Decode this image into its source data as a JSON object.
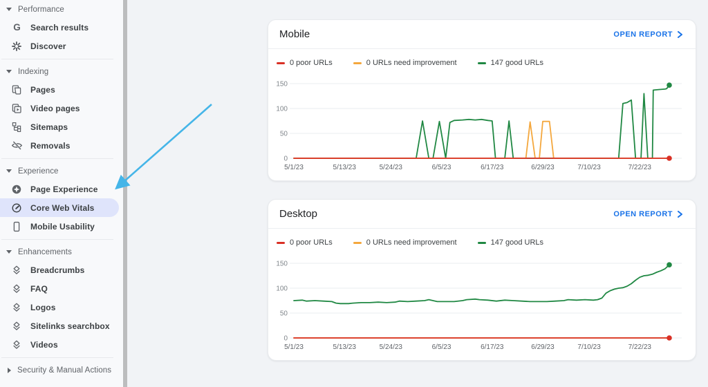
{
  "sidebar": {
    "selected_item": "Core Web Vitals",
    "sections": [
      {
        "label": "Performance",
        "state": "expanded",
        "items": [
          {
            "label": "Search results",
            "icon": "google-g-icon",
            "selected": false
          },
          {
            "label": "Discover",
            "icon": "discover-burst-icon",
            "selected": false
          }
        ]
      },
      {
        "label": "Indexing",
        "state": "expanded",
        "items": [
          {
            "label": "Pages",
            "icon": "pages-icon",
            "selected": false
          },
          {
            "label": "Video pages",
            "icon": "video-pages-icon",
            "selected": false
          },
          {
            "label": "Sitemaps",
            "icon": "sitemaps-icon",
            "selected": false
          },
          {
            "label": "Removals",
            "icon": "removals-eye-off-icon",
            "selected": false
          }
        ]
      },
      {
        "label": "Experience",
        "state": "expanded",
        "items": [
          {
            "label": "Page Experience",
            "icon": "page-experience-icon",
            "selected": false
          },
          {
            "label": "Core Web Vitals",
            "icon": "core-web-vitals-gauge-icon",
            "selected": true
          },
          {
            "label": "Mobile Usability",
            "icon": "mobile-usability-phone-icon",
            "selected": false
          }
        ]
      },
      {
        "label": "Enhancements",
        "state": "expanded",
        "items": [
          {
            "label": "Breadcrumbs",
            "icon": "enhancement-diamond-icon",
            "selected": false
          },
          {
            "label": "FAQ",
            "icon": "enhancement-diamond-icon",
            "selected": false
          },
          {
            "label": "Logos",
            "icon": "enhancement-diamond-icon",
            "selected": false
          },
          {
            "label": "Sitelinks searchbox",
            "icon": "enhancement-diamond-icon",
            "selected": false
          },
          {
            "label": "Videos",
            "icon": "enhancement-diamond-icon",
            "selected": false
          }
        ]
      },
      {
        "label": "Security & Manual Actions",
        "state": "collapsed",
        "items": []
      }
    ]
  },
  "labels": {
    "open_report": "OPEN REPORT"
  },
  "colors": {
    "open_report_link": "#1a73e8",
    "selected_pill": "#dfe4fb",
    "annotation_arrow": "#45b5e8",
    "scrollbar": "#bcbdbe",
    "gridline": "#e9ecef",
    "axis_label": "#80868b",
    "date_label": "#5f6368"
  },
  "chart_data": [
    {
      "id": "mobile",
      "type": "line",
      "title": "Mobile",
      "legend_position": "top",
      "grid": true,
      "x_unit": "days since 5/1/23",
      "x_range": [
        0,
        89
      ],
      "ylim": [
        0,
        160
      ],
      "y_ticks": [
        0,
        50,
        100,
        150
      ],
      "x_ticks": [
        {
          "day": 0,
          "label": "5/1/23"
        },
        {
          "day": 12,
          "label": "5/13/23"
        },
        {
          "day": 23,
          "label": "5/24/23"
        },
        {
          "day": 35,
          "label": "6/5/23"
        },
        {
          "day": 47,
          "label": "6/17/23"
        },
        {
          "day": 59,
          "label": "6/29/23"
        },
        {
          "day": 70,
          "label": "7/10/23"
        },
        {
          "day": 82,
          "label": "7/22/23"
        }
      ],
      "series": [
        {
          "name": "0 poor URLs",
          "color": "#d93025",
          "end_dot": true,
          "points": [
            [
              0,
              0
            ],
            [
              89,
              0
            ]
          ]
        },
        {
          "name": "0 URLs need improvement",
          "color": "#f4a73d",
          "end_dot": false,
          "points": [
            [
              0,
              0
            ],
            [
              55,
              0
            ],
            [
              56,
              73
            ],
            [
              57.2,
              0
            ],
            [
              58.2,
              0
            ],
            [
              59,
              74
            ],
            [
              60.6,
              74
            ],
            [
              61.6,
              0
            ],
            [
              89,
              0
            ]
          ]
        },
        {
          "name": "147 good URLs",
          "color": "#208843",
          "end_dot": true,
          "points": [
            [
              0,
              0
            ],
            [
              29,
              0
            ],
            [
              30.5,
              75
            ],
            [
              32,
              0
            ],
            [
              33,
              0
            ],
            [
              34.5,
              74
            ],
            [
              36,
              0
            ],
            [
              37,
              72
            ],
            [
              38,
              76
            ],
            [
              40,
              77
            ],
            [
              41.5,
              78
            ],
            [
              43,
              77
            ],
            [
              44.5,
              78
            ],
            [
              46,
              76
            ],
            [
              47,
              75
            ],
            [
              47.8,
              0
            ],
            [
              50,
              0
            ],
            [
              51,
              75
            ],
            [
              52,
              0
            ],
            [
              77,
              0
            ],
            [
              78,
              110
            ],
            [
              79,
              112
            ],
            [
              80,
              117
            ],
            [
              81,
              0
            ],
            [
              82.3,
              0
            ],
            [
              83,
              130
            ],
            [
              83.9,
              0
            ],
            [
              85,
              0
            ],
            [
              85.2,
              137
            ],
            [
              86.5,
              138
            ],
            [
              88,
              139
            ],
            [
              88.4,
              140
            ],
            [
              89,
              147
            ]
          ]
        }
      ]
    },
    {
      "id": "desktop",
      "type": "line",
      "title": "Desktop",
      "legend_position": "top",
      "grid": true,
      "x_unit": "days since 5/1/23",
      "x_range": [
        0,
        89
      ],
      "ylim": [
        0,
        160
      ],
      "y_ticks": [
        0,
        50,
        100,
        150
      ],
      "x_ticks": [
        {
          "day": 0,
          "label": "5/1/23"
        },
        {
          "day": 12,
          "label": "5/13/23"
        },
        {
          "day": 23,
          "label": "5/24/23"
        },
        {
          "day": 35,
          "label": "6/5/23"
        },
        {
          "day": 47,
          "label": "6/17/23"
        },
        {
          "day": 59,
          "label": "6/29/23"
        },
        {
          "day": 70,
          "label": "7/10/23"
        },
        {
          "day": 82,
          "label": "7/22/23"
        }
      ],
      "series": [
        {
          "name": "0 poor URLs",
          "color": "#d93025",
          "end_dot": true,
          "points": [
            [
              0,
              0
            ],
            [
              89,
              0
            ]
          ]
        },
        {
          "name": "0 URLs need improvement",
          "color": "#f4a73d",
          "end_dot": false,
          "points": [
            [
              0,
              0
            ],
            [
              89,
              0
            ]
          ]
        },
        {
          "name": "147 good URLs",
          "color": "#208843",
          "end_dot": true,
          "points": [
            [
              0,
              75
            ],
            [
              2,
              76
            ],
            [
              3,
              74
            ],
            [
              5,
              75
            ],
            [
              7,
              74
            ],
            [
              9,
              73
            ],
            [
              10,
              70
            ],
            [
              11,
              69
            ],
            [
              13,
              69
            ],
            [
              14,
              70
            ],
            [
              16,
              71
            ],
            [
              18,
              71
            ],
            [
              20,
              72
            ],
            [
              22,
              71
            ],
            [
              24,
              72
            ],
            [
              25,
              74
            ],
            [
              27,
              73
            ],
            [
              29,
              74
            ],
            [
              31,
              75
            ],
            [
              32,
              77
            ],
            [
              33,
              75
            ],
            [
              34,
              73
            ],
            [
              36,
              73
            ],
            [
              38,
              73
            ],
            [
              40,
              75
            ],
            [
              41,
              77
            ],
            [
              43,
              78
            ],
            [
              44,
              77
            ],
            [
              46,
              76
            ],
            [
              48,
              74
            ],
            [
              50,
              76
            ],
            [
              52,
              75
            ],
            [
              54,
              74
            ],
            [
              56,
              73
            ],
            [
              58,
              73
            ],
            [
              60,
              73
            ],
            [
              62,
              74
            ],
            [
              64,
              75
            ],
            [
              65,
              77
            ],
            [
              67,
              76
            ],
            [
              69,
              77
            ],
            [
              71,
              76
            ],
            [
              72,
              77
            ],
            [
              73,
              80
            ],
            [
              74,
              90
            ],
            [
              75,
              95
            ],
            [
              76,
              98
            ],
            [
              77,
              100
            ],
            [
              78,
              101
            ],
            [
              79,
              104
            ],
            [
              80,
              109
            ],
            [
              81,
              116
            ],
            [
              82,
              122
            ],
            [
              83,
              125
            ],
            [
              84,
              126
            ],
            [
              85,
              128
            ],
            [
              86,
              132
            ],
            [
              87,
              135
            ],
            [
              88,
              139
            ],
            [
              89,
              147
            ]
          ]
        }
      ]
    }
  ]
}
